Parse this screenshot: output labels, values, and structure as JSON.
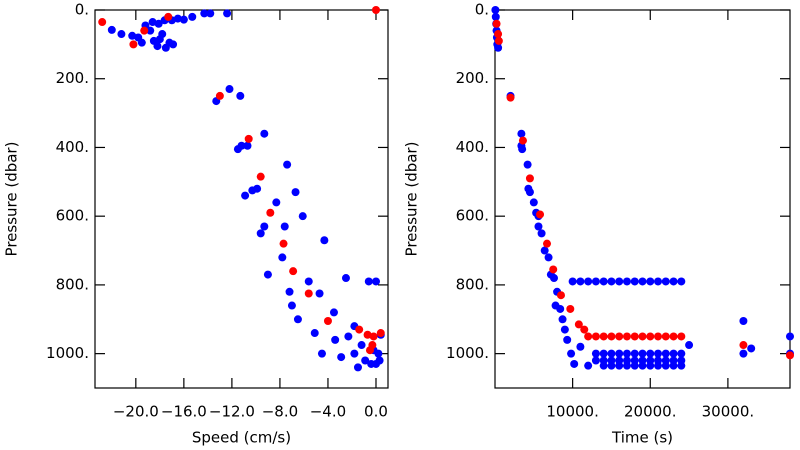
{
  "chart_data": [
    {
      "type": "scatter",
      "xlabel": "Speed (cm/s)",
      "ylabel": "Pressure (dbar)",
      "xlim": [
        -23.4,
        1.0
      ],
      "ylim": [
        0,
        1100
      ],
      "y_inverted": true,
      "xticks": [
        {
          "value": -20,
          "label": "−20.0"
        },
        {
          "value": -16,
          "label": "−16.0"
        },
        {
          "value": -12,
          "label": "−12.0"
        },
        {
          "value": -8,
          "label": "−8.0"
        },
        {
          "value": -4,
          "label": "−4.0"
        },
        {
          "value": 0,
          "label": "0.0"
        }
      ],
      "yticks": [
        {
          "value": 0,
          "label": "0."
        },
        {
          "value": 200,
          "label": "200."
        },
        {
          "value": 400,
          "label": "400."
        },
        {
          "value": 600,
          "label": "600."
        },
        {
          "value": 800,
          "label": "800."
        },
        {
          "value": 1000,
          "label": "1000."
        }
      ],
      "series": [
        {
          "color": "#0000ff",
          "x": [
            -22,
            -21.2,
            -20.3,
            -19.8,
            -19.5,
            -19.2,
            -18.8,
            -18.5,
            -18.2,
            -18,
            -17.8,
            -17.5,
            -17.2,
            -16.9,
            -18.6,
            -18.1,
            -17.6,
            -17,
            -16.5,
            -16,
            -15.3,
            -14.3,
            -13.8,
            -12.4,
            -13.3,
            -12.2,
            -11.3,
            -11.5,
            -11.2,
            -10.7,
            -10.9,
            -10.3,
            -9.9,
            -9.3,
            -9.6,
            -9.3,
            -9,
            -8.3,
            -7.8,
            -7.6,
            -7.4,
            -7.2,
            -7,
            -6.7,
            -6.5,
            -6.1,
            -5.6,
            -5.1,
            -4.7,
            -4.5,
            -4.3,
            -3.5,
            -3.4,
            -2.5,
            -2.3,
            -2.9,
            -1.8,
            -1.2,
            -0.9,
            -0.6,
            0,
            -0.4,
            0,
            0.3,
            0.2,
            -0.2,
            0.4,
            -1.5,
            -1.8
          ],
          "values": [
            58,
            70,
            75,
            80,
            95,
            45,
            60,
            90,
            105,
            85,
            70,
            110,
            95,
            100,
            35,
            40,
            30,
            30,
            25,
            28,
            20,
            10,
            10,
            10,
            265,
            230,
            250,
            405,
            395,
            395,
            540,
            525,
            520,
            360,
            650,
            630,
            770,
            560,
            720,
            630,
            450,
            820,
            860,
            530,
            900,
            600,
            790,
            940,
            825,
            1000,
            670,
            880,
            960,
            780,
            950,
            1010,
            1000,
            975,
            1020,
            790,
            790,
            1030,
            1030,
            1020,
            1000,
            990,
            945,
            1040,
            920
          ]
        },
        {
          "color": "#ff0000",
          "x": [
            -22.8,
            -20.2,
            -19.3,
            -17.3,
            -13,
            -10.6,
            -9.6,
            -8.8,
            -7.7,
            -6.9,
            -5.6,
            -4,
            -1.4,
            -0.7,
            -0.2,
            0.4,
            -0.3,
            -0.5,
            0
          ],
          "values": [
            35,
            100,
            60,
            20,
            250,
            375,
            485,
            590,
            680,
            760,
            825,
            905,
            930,
            945,
            950,
            940,
            975,
            990,
            0
          ]
        }
      ]
    },
    {
      "type": "scatter",
      "xlabel": "Time (s)",
      "ylabel": "Pressure (dbar)",
      "xlim": [
        0,
        38000
      ],
      "ylim": [
        0,
        1100
      ],
      "y_inverted": true,
      "xticks": [
        {
          "value": 10000,
          "label": "10000."
        },
        {
          "value": 20000,
          "label": "20000."
        },
        {
          "value": 30000,
          "label": "30000."
        }
      ],
      "yticks": [
        {
          "value": 0,
          "label": "0."
        },
        {
          "value": 200,
          "label": "200."
        },
        {
          "value": 400,
          "label": "400."
        },
        {
          "value": 600,
          "label": "600."
        },
        {
          "value": 800,
          "label": "800."
        },
        {
          "value": 1000,
          "label": "1000."
        }
      ],
      "series": [
        {
          "color": "#0000ff",
          "x": [
            50,
            100,
            150,
            200,
            250,
            300,
            400,
            2000,
            3400,
            3400,
            3500,
            4200,
            4300,
            4500,
            5000,
            5300,
            5600,
            5600,
            6000,
            6400,
            6900,
            7200,
            7600,
            8000,
            7800,
            8400,
            8700,
            9000,
            9300,
            9800,
            10200,
            11000,
            10000,
            11000,
            12000,
            13000,
            14000,
            15000,
            16000,
            17000,
            18000,
            19000,
            20000,
            21000,
            22000,
            23000,
            24000,
            13000,
            14000,
            15000,
            16000,
            17000,
            18000,
            19000,
            20000,
            21000,
            22000,
            23000,
            24000,
            13000,
            14000,
            15000,
            16000,
            17000,
            18000,
            19000,
            20000,
            21000,
            22000,
            23000,
            24000,
            12000,
            14000,
            15000,
            16000,
            17000,
            18000,
            19000,
            20000,
            21000,
            22000,
            23000,
            24000,
            25000,
            32000,
            32000,
            33000,
            38000,
            38000
          ],
          "values": [
            0,
            20,
            40,
            60,
            80,
            100,
            110,
            250,
            360,
            395,
            405,
            450,
            520,
            530,
            560,
            590,
            600,
            630,
            650,
            700,
            720,
            770,
            780,
            820,
            860,
            870,
            900,
            930,
            960,
            1000,
            1030,
            980,
            790,
            790,
            790,
            790,
            790,
            790,
            790,
            790,
            790,
            790,
            790,
            790,
            790,
            790,
            790,
            1000,
            1000,
            1000,
            1000,
            1000,
            1000,
            1000,
            1000,
            1000,
            1000,
            1000,
            1000,
            1020,
            1020,
            1020,
            1020,
            1020,
            1020,
            1020,
            1020,
            1020,
            1020,
            1020,
            1020,
            1035,
            1035,
            1035,
            1035,
            1035,
            1035,
            1035,
            1035,
            1035,
            1035,
            1035,
            1035,
            975,
            905,
            1000,
            985,
            950,
            1000
          ]
        },
        {
          "color": "#ff0000",
          "x": [
            200,
            400,
            500,
            2000,
            3600,
            4500,
            5800,
            6700,
            7500,
            8500,
            9700,
            10800,
            11500,
            12000,
            13000,
            14000,
            15000,
            16000,
            17000,
            18000,
            19000,
            20000,
            21000,
            22000,
            23000,
            24000,
            32000,
            38000
          ],
          "values": [
            40,
            70,
            90,
            255,
            380,
            490,
            595,
            680,
            755,
            830,
            870,
            915,
            930,
            950,
            950,
            950,
            950,
            950,
            950,
            950,
            950,
            950,
            950,
            950,
            950,
            950,
            975,
            1005
          ]
        }
      ]
    }
  ]
}
